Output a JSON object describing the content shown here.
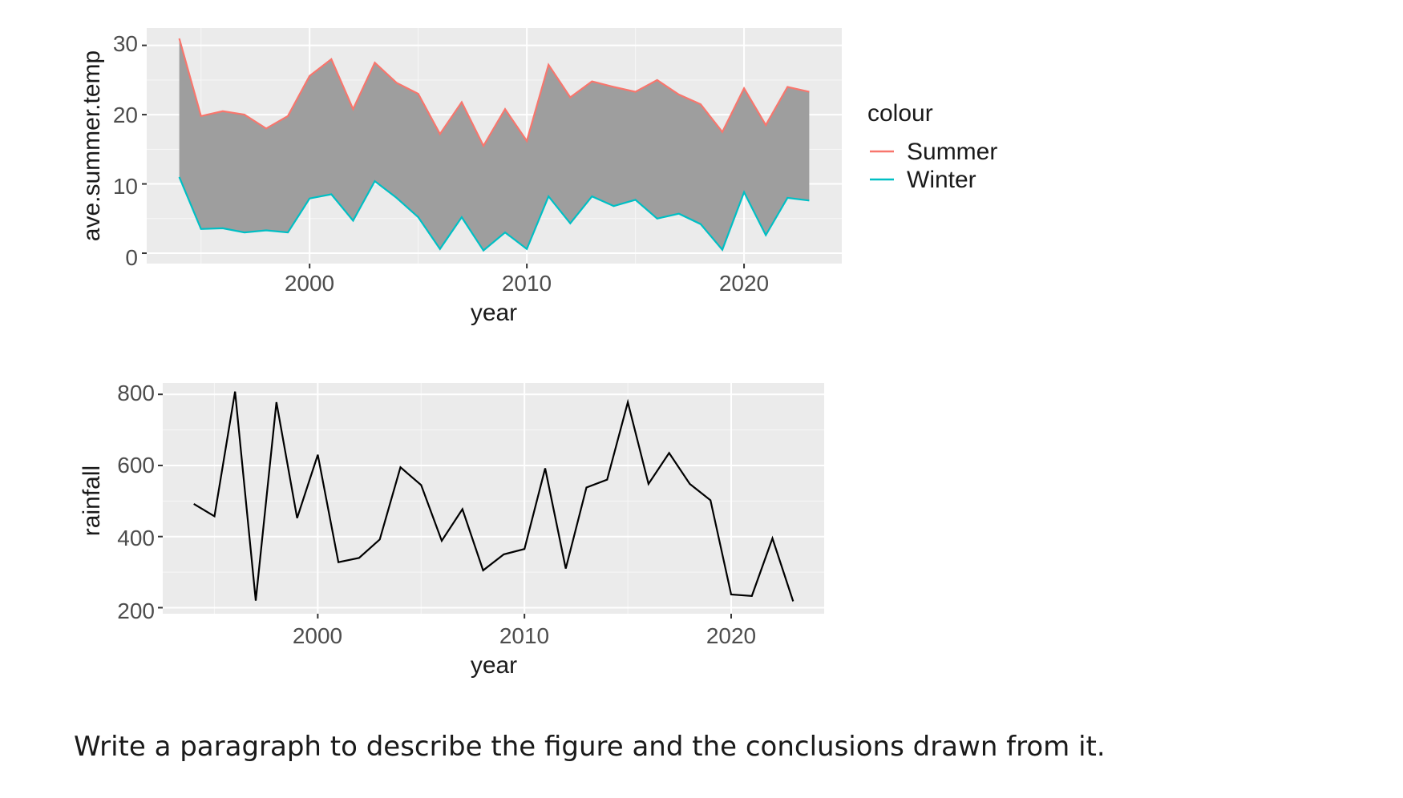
{
  "question": "Write a paragraph to describe the figure and the conclusions drawn from it.",
  "chart_data": [
    {
      "type": "area",
      "xlabel": "year",
      "ylabel": "ave.summer.temp",
      "x": [
        1994,
        1995,
        1996,
        1997,
        1998,
        1999,
        2000,
        2001,
        2002,
        2003,
        2004,
        2005,
        2006,
        2007,
        2008,
        2009,
        2010,
        2011,
        2012,
        2013,
        2014,
        2015,
        2016,
        2017,
        2018,
        2019,
        2020,
        2021,
        2022,
        2023
      ],
      "series": [
        {
          "name": "Summer",
          "color": "#F8766D",
          "values": [
            31,
            19.8,
            20.5,
            20,
            18,
            19.8,
            25.6,
            28,
            20.8,
            27.5,
            24.6,
            23,
            17.2,
            21.8,
            15.5,
            20.8,
            16.2,
            27.2,
            22.5,
            24.8,
            24,
            23.3,
            25,
            22.9,
            21.5,
            17.5,
            23.8,
            18.5,
            24,
            23.3
          ]
        },
        {
          "name": "Winter",
          "color": "#00BFC4",
          "values": [
            11,
            3.5,
            3.6,
            3,
            3.3,
            3,
            7.9,
            8.5,
            4.7,
            10.4,
            8,
            5.2,
            0.6,
            5.2,
            0.4,
            3,
            0.6,
            8.2,
            4.3,
            8.2,
            6.8,
            7.7,
            5,
            5.7,
            4.2,
            0.5,
            8.8,
            2.6,
            8,
            7.6
          ]
        }
      ],
      "fill_color": "#9e9e9e",
      "xticks": [
        "2000",
        "2010",
        "2020"
      ],
      "yticks": [
        "0",
        "10",
        "20",
        "30"
      ],
      "xlim": [
        1992.5,
        2024.5
      ],
      "ylim": [
        -1.5,
        32.5
      ],
      "grid": true,
      "legend": {
        "title": "colour",
        "position": "right",
        "items": [
          "Summer",
          "Winter"
        ]
      }
    },
    {
      "type": "line",
      "xlabel": "year",
      "ylabel": "rainfall",
      "x": [
        1994,
        1995,
        1996,
        1997,
        1998,
        1999,
        2000,
        2001,
        2002,
        2003,
        2004,
        2005,
        2006,
        2007,
        2008,
        2009,
        2010,
        2011,
        2012,
        2013,
        2014,
        2015,
        2016,
        2017,
        2018,
        2019,
        2020,
        2021,
        2022,
        2023
      ],
      "series": [
        {
          "color": "#000000",
          "values": [
            492,
            457,
            808,
            220,
            778,
            452,
            630,
            328,
            340,
            392,
            595,
            545,
            388,
            477,
            305,
            350,
            365,
            592,
            310,
            538,
            560,
            778,
            548,
            635,
            548,
            502,
            237,
            233,
            395,
            218
          ]
        }
      ],
      "xticks": [
        "2000",
        "2010",
        "2020"
      ],
      "yticks": [
        "200",
        "400",
        "600",
        "800"
      ],
      "xlim": [
        1992.5,
        2024.5
      ],
      "ylim": [
        183,
        832
      ],
      "grid": true
    }
  ]
}
